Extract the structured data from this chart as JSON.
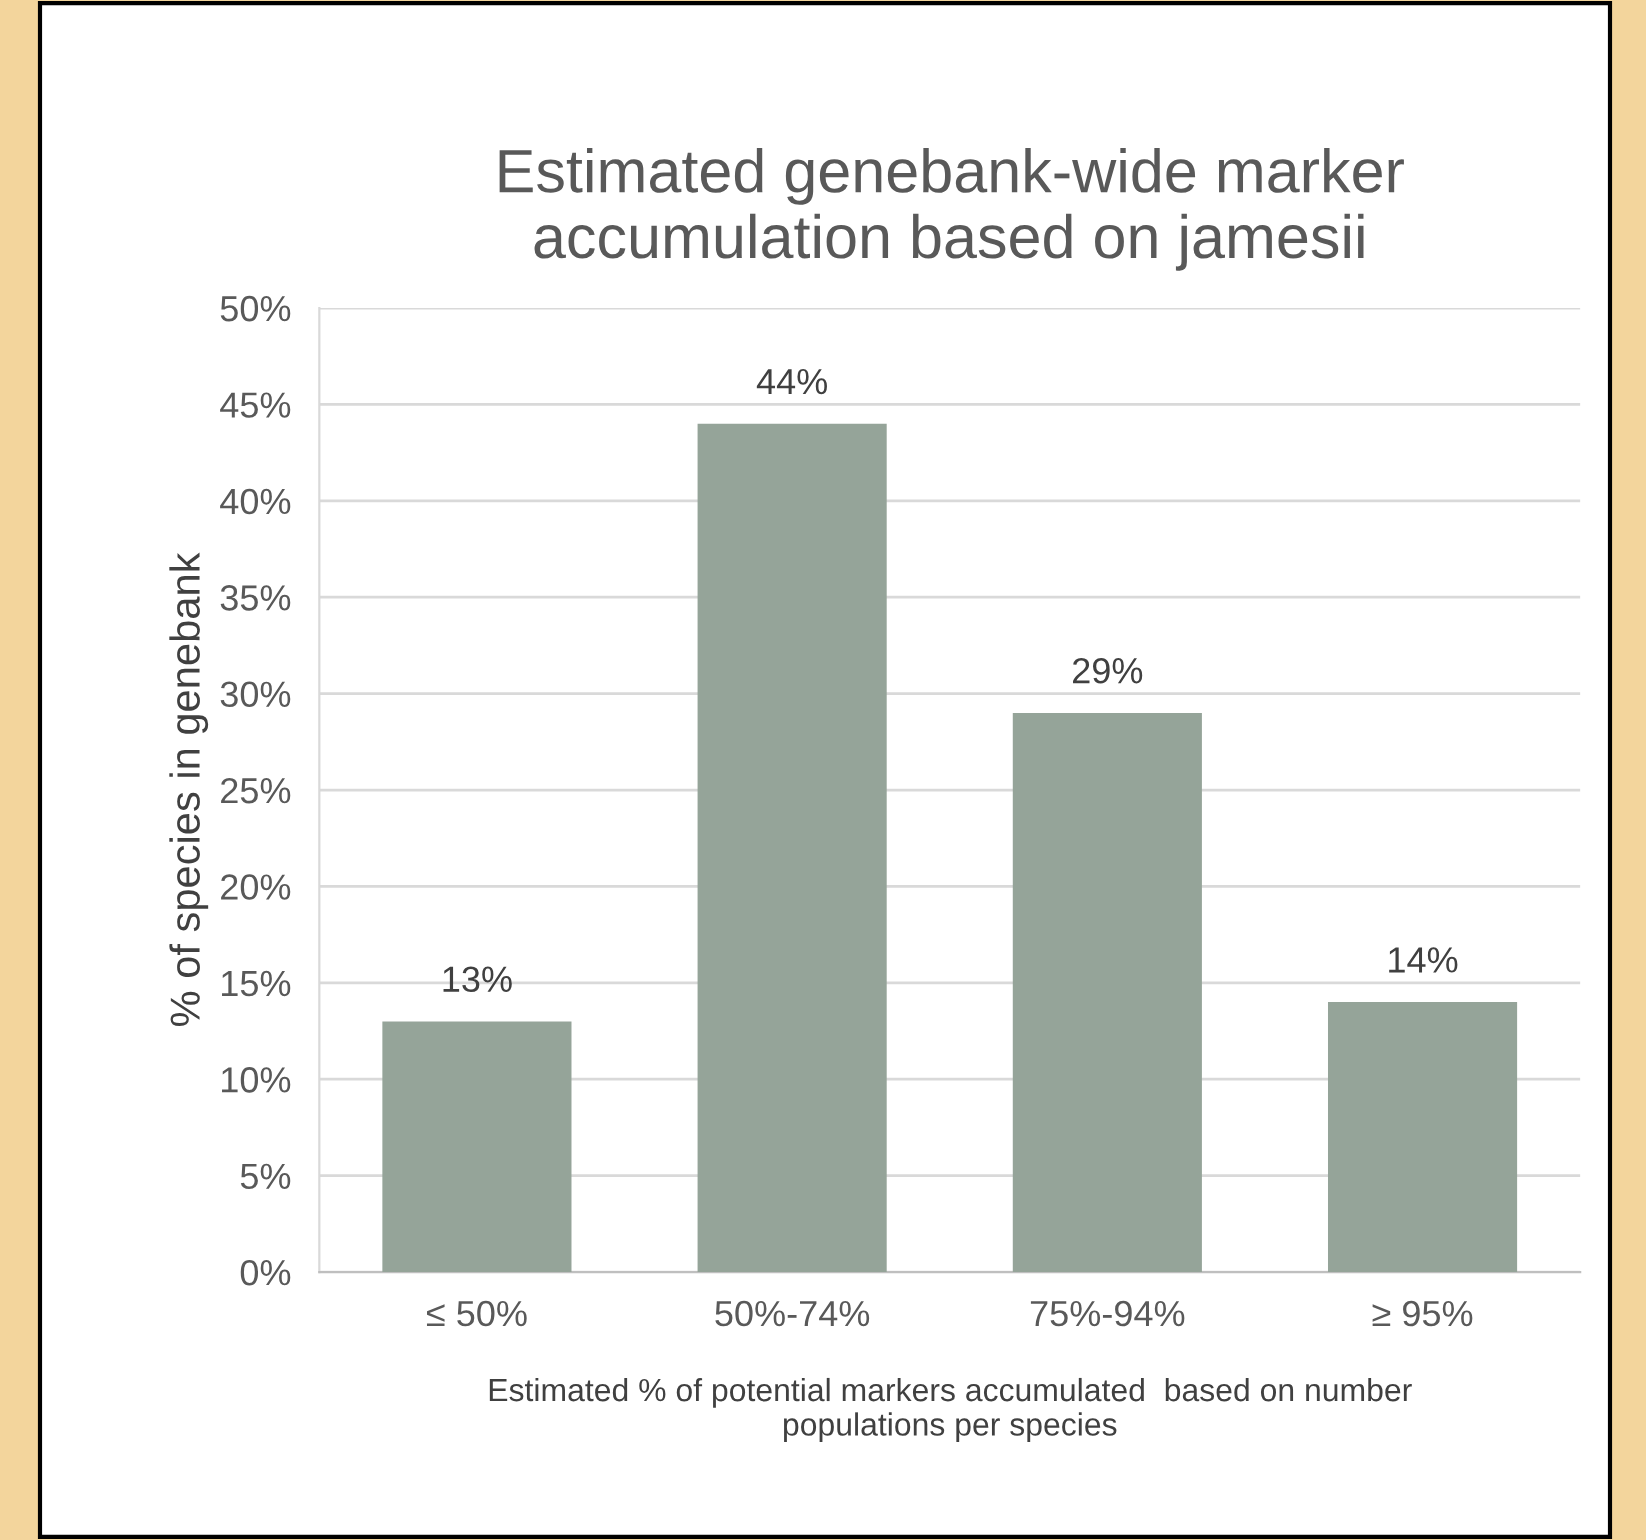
{
  "chart_data": {
    "type": "bar",
    "title": "Estimated genebank-wide marker\naccumulation based on jamesii",
    "categories": [
      "≤ 50%",
      "50%-74%",
      "75%-94%",
      "≥ 95%"
    ],
    "values": [
      13,
      44,
      29,
      14
    ],
    "value_labels": [
      "13%",
      "44%",
      "29%",
      "14%"
    ],
    "color": "#95a499",
    "xlabel": "Estimated % of potential markers accumulated  based on number\npopulations per species",
    "ylabel": "% of species in genebank",
    "ylim": [
      0,
      50
    ],
    "yticks": [
      {
        "value": 0,
        "label": "0%"
      },
      {
        "value": 5,
        "label": "5%"
      },
      {
        "value": 10,
        "label": "10%"
      },
      {
        "value": 15,
        "label": "15%"
      },
      {
        "value": 20,
        "label": "20%"
      },
      {
        "value": 25,
        "label": "25%"
      },
      {
        "value": 30,
        "label": "30%"
      },
      {
        "value": 35,
        "label": "35%"
      },
      {
        "value": 40,
        "label": "40%"
      },
      {
        "value": 45,
        "label": "45%"
      },
      {
        "value": 50,
        "label": "50%"
      }
    ],
    "grid": "y"
  }
}
